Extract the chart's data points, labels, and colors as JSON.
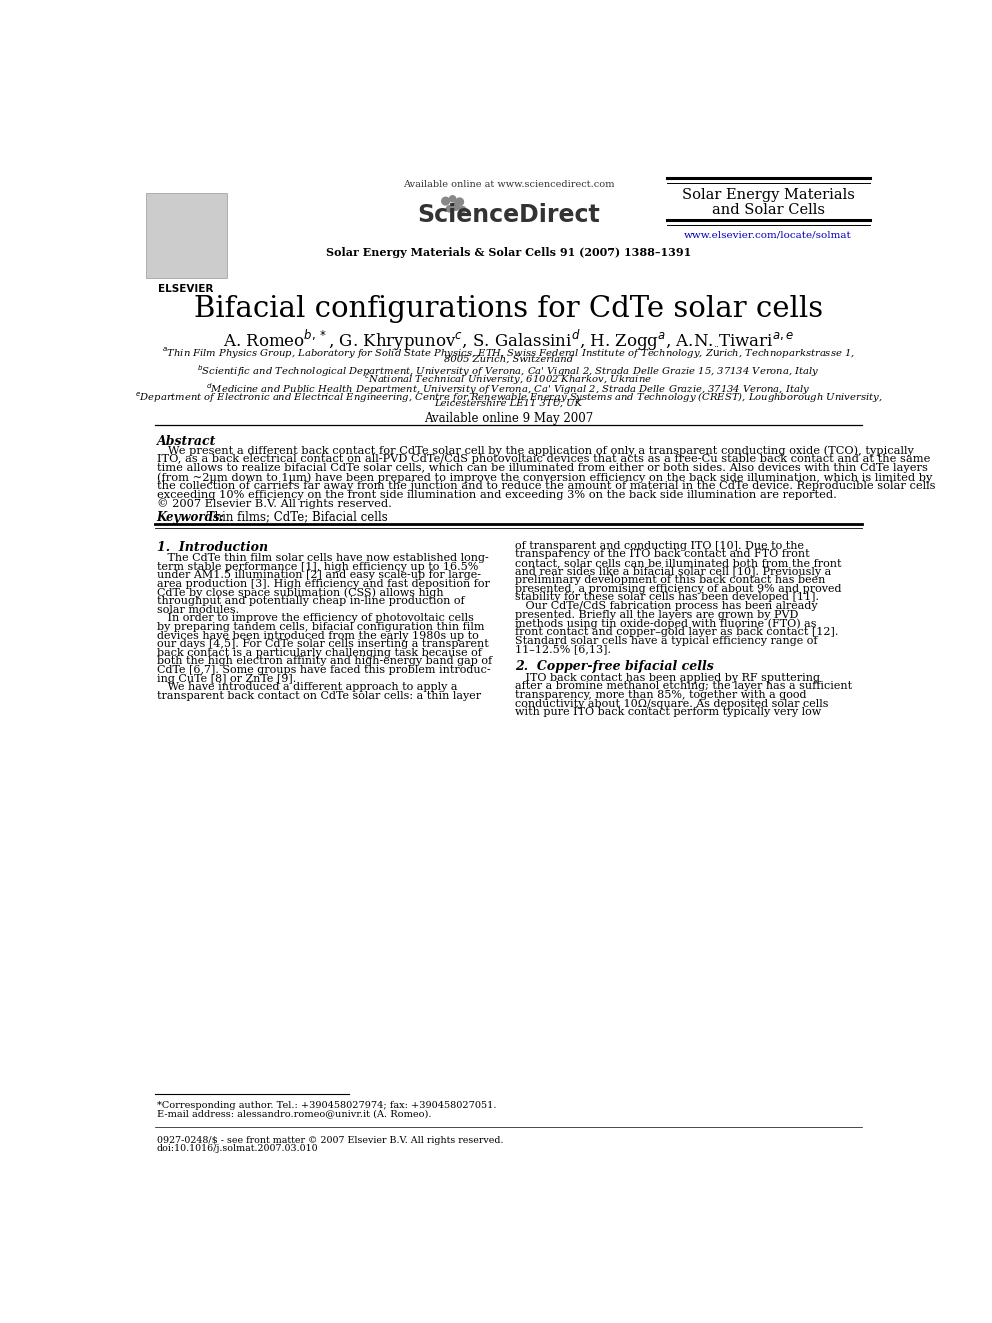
{
  "bg_color": "#ffffff",
  "available_online_header": "Available online at www.sciencedirect.com",
  "sciencedirect_text": "ScienceDirect",
  "journal_info": "Solar Energy Materials & Solar Cells 91 (2007) 1388–1391",
  "journal_name_line1": "Solar Energy Materials",
  "journal_name_line2": "and Solar Cells",
  "url": "www.elsevier.com/locate/solmat",
  "elsevier_text": "ELSEVIER",
  "title": "Bifacial configurations for CdTe solar cells",
  "available_online_date": "Available online 9 May 2007",
  "abstract_title": "Abstract",
  "abstract_text": "   We present a different back contact for CdTe solar cell by the application of only a transparent conducting oxide (TCO), typically ITO, as a back electrical contact on all-PVD CdTe/CdS photovoltaic devices that acts as a free-Cu stable back contact and at the same time allows to realize bifacial CdTe solar cells, which can be illuminated from either or both sides. Also devices with thin CdTe layers (from ~2µm down to 1µm) have been prepared to improve the conversion efficiency on the back side illumination, which is limited by the collection of carriers far away from the junction and to reduce the amount of material in the CdTe device. Reproducible solar cells exceeding 10% efficiency on the front side illumination and exceeding 3% on the back side illumination are reported.\n© 2007 Elsevier B.V. All rights reserved.",
  "keywords_label": "Keywords:",
  "keywords_text": " Thin films; CdTe; Bifacial cells",
  "section1_title": "1.  Introduction",
  "section1_left_lines": [
    "   The CdTe thin film solar cells have now established long-",
    "term stable performance [1], high efficiency up to 16.5%",
    "under AM1.5 illumination [2] and easy scale-up for large-",
    "area production [3]. High efficiency and fast deposition for",
    "CdTe by close space sublimation (CSS) allows high",
    "throughput and potentially cheap in-line production of",
    "solar modules.",
    "   In order to improve the efficiency of photovoltaic cells",
    "by preparing tandem cells, bifacial configuration thin film",
    "devices have been introduced from the early 1980s up to",
    "our days [4,5]. For CdTe solar cells inserting a transparent",
    "back contact is a particularly challenging task because of",
    "both the high electron affinity and high-energy band gap of",
    "CdTe [6,7]. Some groups have faced this problem introduc-",
    "ing CuTe [8] or ZnTe [9].",
    "   We have introduced a different approach to apply a",
    "transparent back contact on CdTe solar cells: a thin layer"
  ],
  "section1_right_lines": [
    "of transparent and conducting ITO [10]. Due to the",
    "transparency of the ITO back contact and FTO front",
    "contact, solar cells can be illuminated both from the front",
    "and rear sides like a bifacial solar cell [10]. Previously a",
    "preliminary development of this back contact has been",
    "presented, a promising efficiency of about 9% and proved",
    "stability for these solar cells has been developed [11].",
    "   Our CdTe/CdS fabrication process has been already",
    "presented. Briefly all the layers are grown by PVD",
    "methods using tin oxide-doped with fluorine (FTO) as",
    "front contact and copper–gold layer as back contact [12].",
    "Standard solar cells have a typical efficiency range of",
    "11–12.5% [6,13]."
  ],
  "section2_title": "2.  Copper-free bifacial cells",
  "section2_right_lines": [
    "   ITO back contact has been applied by RF sputtering",
    "after a bromine methanol etching; the layer has a sufficient",
    "transparency, more than 85%, together with a good",
    "conductivity about 10Ω/square. As deposited solar cells",
    "with pure ITO back contact perform typically very low"
  ],
  "footnote_line1": "*Corresponding author. Tel.: +390458027974; fax: +390458027051.",
  "footnote_line2": "E-mail address: alessandro.romeo@univr.it (A. Romeo).",
  "footer_line1": "0927-0248/$ - see front matter © 2007 Elsevier B.V. All rights reserved.",
  "footer_line2": "doi:10.1016/j.solmat.2007.03.010"
}
